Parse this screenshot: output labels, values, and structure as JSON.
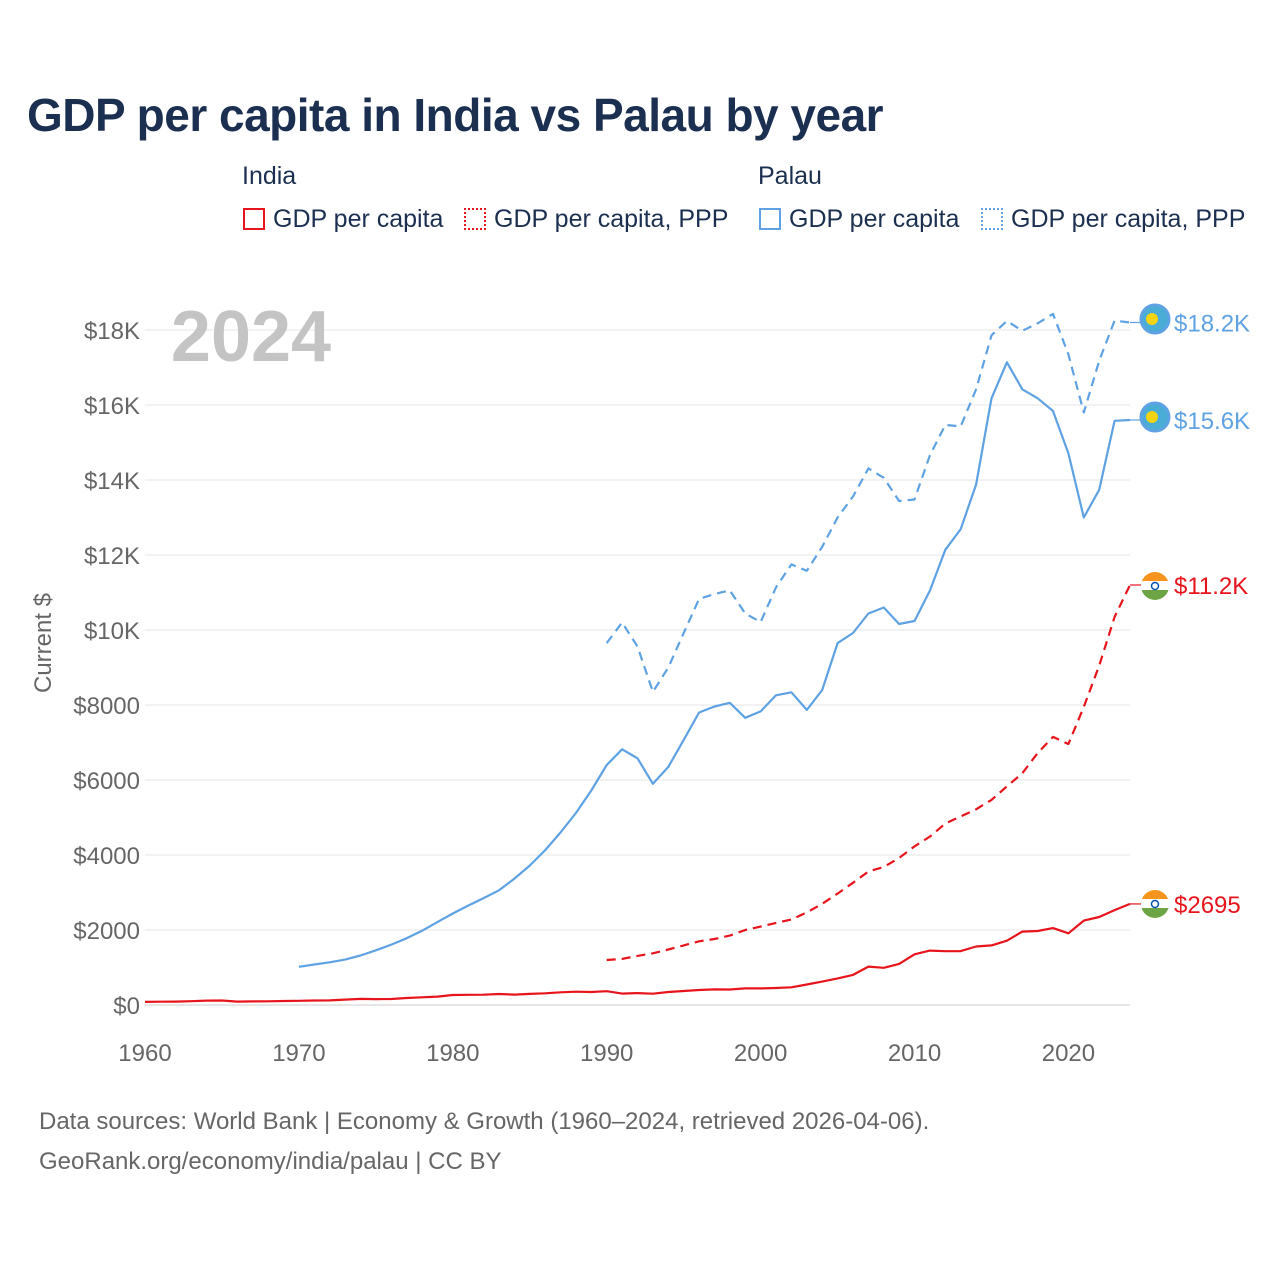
{
  "title": "GDP per capita in India vs Palau by year",
  "legend": {
    "groups": [
      {
        "country": "India",
        "items": [
          {
            "label": "GDP per capita",
            "style": "solid",
            "color": "#e8141c"
          },
          {
            "label": "GDP per capita, PPP",
            "style": "dotted",
            "color": "#e8141c"
          }
        ]
      },
      {
        "country": "Palau",
        "items": [
          {
            "label": "GDP per capita",
            "style": "solid",
            "color": "#5ea2e3"
          },
          {
            "label": "GDP per capita, PPP",
            "style": "dotted",
            "color": "#5ea2e3"
          }
        ]
      }
    ]
  },
  "year_label": "2024",
  "footer": {
    "line1": "Data sources: World Bank | Economy & Growth (1960–2024, retrieved 2026-04-06).",
    "line2": "GeoRank.org/economy/india/palau | CC BY"
  },
  "chart_data": {
    "type": "line",
    "title": "GDP per capita in India vs Palau by year",
    "xlabel": "",
    "ylabel": "Current $",
    "xlim": [
      1960,
      2024
    ],
    "ylim": [
      0,
      18500
    ],
    "x_ticks": [
      1960,
      1970,
      1980,
      1990,
      2000,
      2010,
      2020
    ],
    "x_tick_labels": [
      "1960",
      "1970",
      "1980",
      "1990",
      "2000",
      "2010",
      "2020"
    ],
    "y_ticks": [
      0,
      2000,
      4000,
      6000,
      8000,
      10000,
      12000,
      14000,
      16000,
      18000
    ],
    "y_tick_labels": [
      "$0",
      "$2000",
      "$4000",
      "$6000",
      "$8000",
      "$10K",
      "$12K",
      "$14K",
      "$16K",
      "$18K"
    ],
    "grid": true,
    "colors": {
      "india": "#e8141c",
      "palau": "#5ea2e3",
      "grid": "#e6e6e6",
      "axis": "#cccccc",
      "tick_text": "#666666"
    },
    "series": [
      {
        "name": "India GDP per capita",
        "country": "India",
        "style": "solid",
        "color": "#e8141c",
        "x": [
          1960,
          1961,
          1962,
          1963,
          1964,
          1965,
          1966,
          1967,
          1968,
          1969,
          1970,
          1971,
          1972,
          1973,
          1974,
          1975,
          1976,
          1977,
          1978,
          1979,
          1980,
          1981,
          1982,
          1983,
          1984,
          1985,
          1986,
          1987,
          1988,
          1989,
          1990,
          1991,
          1992,
          1993,
          1994,
          1995,
          1996,
          1997,
          1998,
          1999,
          2000,
          2001,
          2002,
          2003,
          2004,
          2005,
          2006,
          2007,
          2008,
          2009,
          2010,
          2011,
          2012,
          2013,
          2014,
          2015,
          2016,
          2017,
          2018,
          2019,
          2020,
          2021,
          2022,
          2023,
          2024
        ],
        "values": [
          83,
          87,
          90,
          102,
          117,
          120,
          90,
          96,
          99,
          107,
          112,
          119,
          123,
          143,
          163,
          158,
          161,
          186,
          206,
          224,
          267,
          271,
          275,
          292,
          277,
          297,
          311,
          340,
          355,
          347,
          368,
          303,
          317,
          301,
          346,
          374,
          400,
          416,
          413,
          442,
          443,
          452,
          471,
          546,
          624,
          710,
          802,
          1023,
          993,
          1096,
          1351,
          1450,
          1434,
          1438,
          1560,
          1590,
          1714,
          1958,
          1974,
          2050,
          1913,
          2250,
          2347,
          2530,
          2695
        ],
        "end_label": "$2695"
      },
      {
        "name": "India GDP per capita, PPP",
        "country": "India",
        "style": "dashed",
        "color": "#e8141c",
        "x": [
          1990,
          1991,
          1992,
          1993,
          1994,
          1995,
          1996,
          1997,
          1998,
          1999,
          2000,
          2001,
          2002,
          2003,
          2004,
          2005,
          2006,
          2007,
          2008,
          2009,
          2010,
          2011,
          2012,
          2013,
          2014,
          2015,
          2016,
          2017,
          2018,
          2019,
          2020,
          2021,
          2022,
          2023,
          2024
        ],
        "values": [
          1200,
          1230,
          1310,
          1380,
          1480,
          1590,
          1700,
          1760,
          1850,
          2000,
          2090,
          2190,
          2280,
          2470,
          2700,
          2970,
          3260,
          3560,
          3680,
          3920,
          4230,
          4490,
          4840,
          5030,
          5220,
          5470,
          5830,
          6180,
          6720,
          7150,
          6960,
          7950,
          9050,
          10350,
          11200
        ],
        "end_label": "$11.2K"
      },
      {
        "name": "Palau GDP per capita",
        "country": "Palau",
        "style": "solid",
        "color": "#5ea2e3",
        "x": [
          1970,
          1971,
          1972,
          1973,
          1974,
          1975,
          1976,
          1977,
          1978,
          1979,
          1980,
          1981,
          1982,
          1983,
          1984,
          1985,
          1986,
          1987,
          1988,
          1989,
          1990,
          1991,
          1992,
          1993,
          1994,
          1995,
          1996,
          1997,
          1998,
          1999,
          2000,
          2001,
          2002,
          2003,
          2004,
          2005,
          2006,
          2007,
          2008,
          2009,
          2010,
          2011,
          2012,
          2013,
          2014,
          2015,
          2016,
          2017,
          2018,
          2019,
          2020,
          2021,
          2022,
          2023,
          2024
        ],
        "values": [
          1020,
          1080,
          1140,
          1210,
          1320,
          1460,
          1610,
          1780,
          1980,
          2210,
          2440,
          2650,
          2850,
          3060,
          3370,
          3720,
          4130,
          4600,
          5120,
          5720,
          6400,
          6820,
          6580,
          5900,
          6350,
          7070,
          7800,
          7960,
          8060,
          7660,
          7830,
          8260,
          8340,
          7870,
          8400,
          9650,
          9920,
          10440,
          10600,
          10160,
          10240,
          11050,
          12140,
          12690,
          13880,
          16180,
          17140,
          16420,
          16180,
          15840,
          14710,
          13000,
          13740,
          15580,
          15600
        ],
        "end_label": "$15.6K"
      },
      {
        "name": "Palau GDP per capita, PPP",
        "country": "Palau",
        "style": "dashed",
        "color": "#5ea2e3",
        "x": [
          1990,
          1991,
          1992,
          1993,
          1994,
          1995,
          1996,
          1997,
          1998,
          1999,
          2000,
          2001,
          2002,
          2003,
          2004,
          2005,
          2006,
          2007,
          2008,
          2009,
          2010,
          2011,
          2012,
          2013,
          2014,
          2015,
          2016,
          2017,
          2018,
          2019,
          2020,
          2021,
          2022,
          2023,
          2024
        ],
        "values": [
          9650,
          10200,
          9560,
          8350,
          9000,
          9920,
          10830,
          10960,
          11060,
          10440,
          10210,
          11140,
          11750,
          11580,
          12220,
          13000,
          13560,
          14310,
          14060,
          13440,
          13480,
          14660,
          15470,
          15430,
          16420,
          17860,
          18240,
          17980,
          18180,
          18430,
          17350,
          15800,
          17180,
          18250,
          18200
        ],
        "end_label": "$18.2K"
      }
    ]
  }
}
